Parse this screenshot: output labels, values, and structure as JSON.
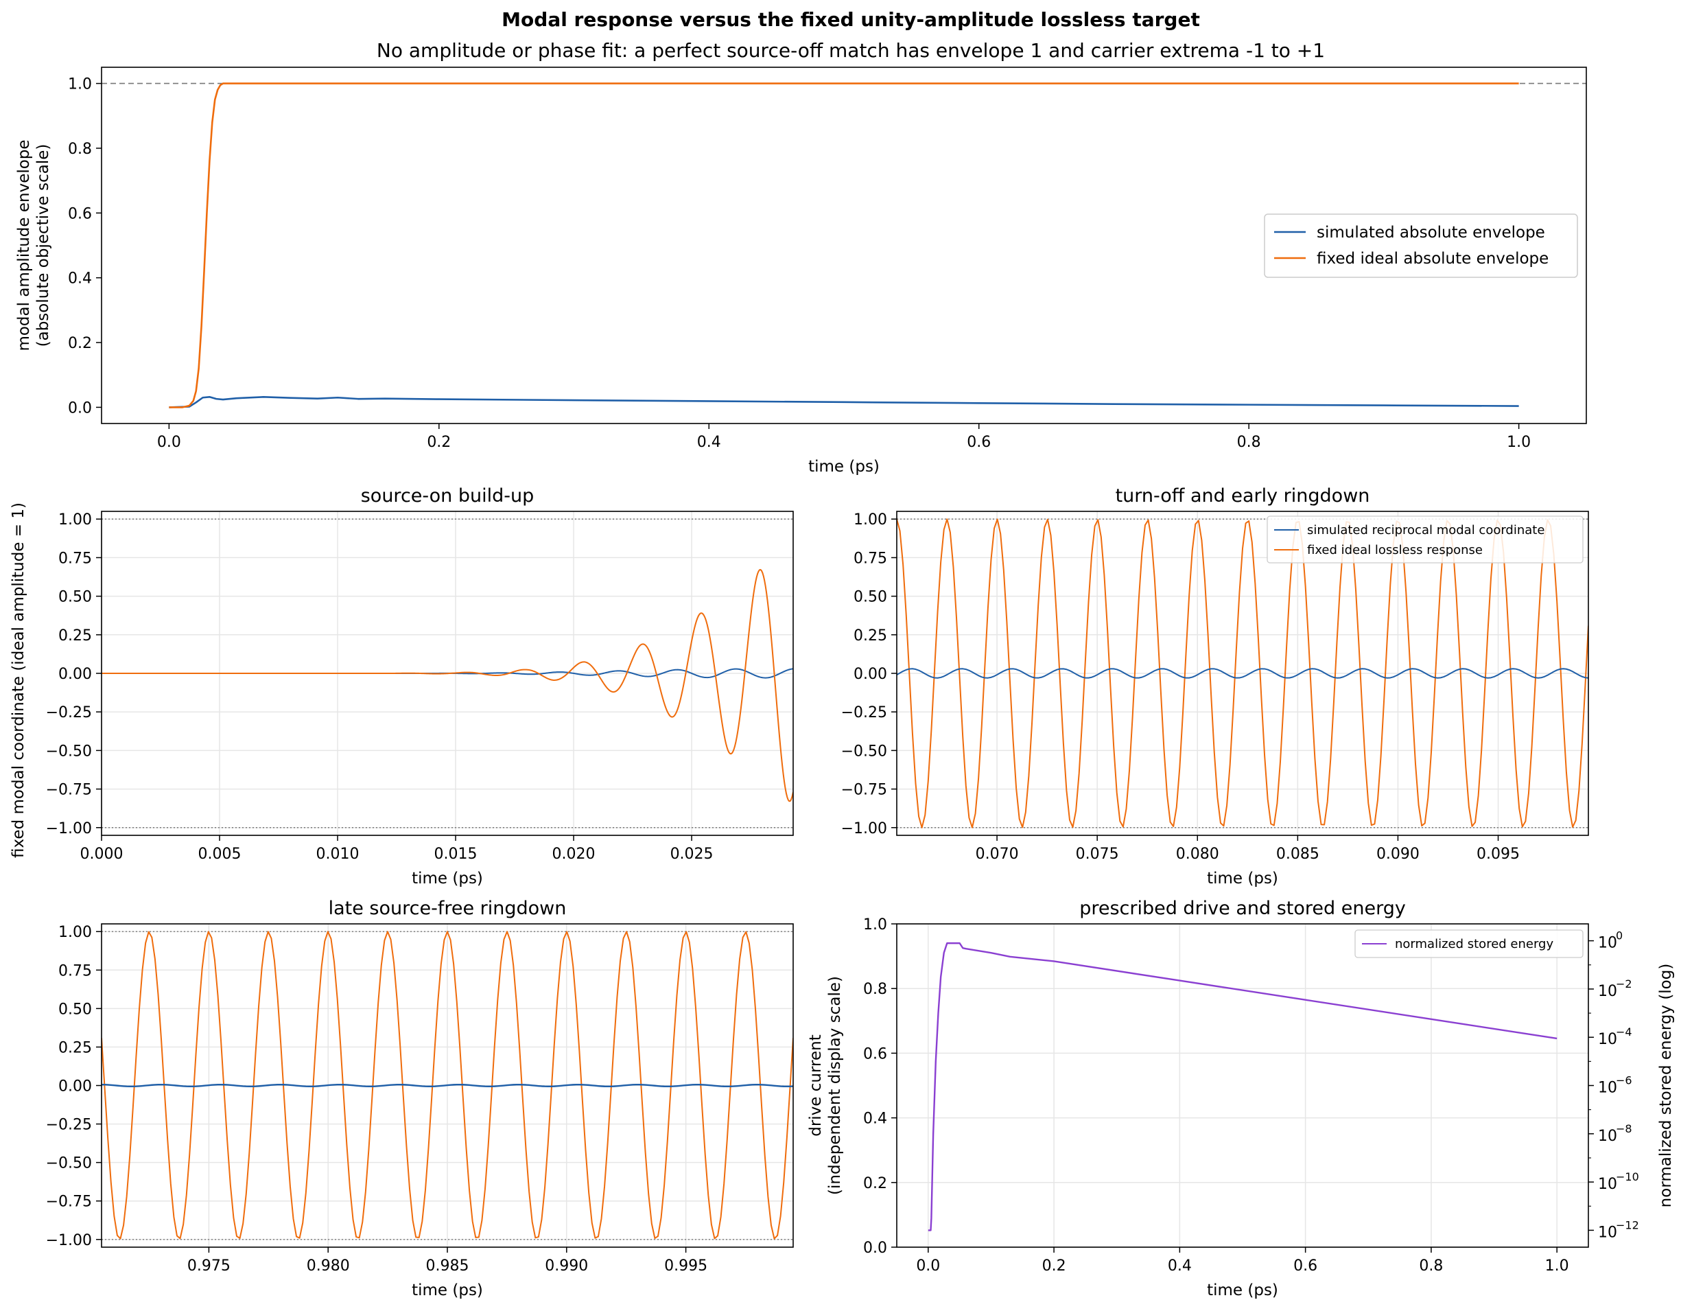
{
  "figure": {
    "title": "Modal response versus the fixed unity-amplitude lossless target",
    "subtitle": "No amplitude or phase fit: a perfect source-off match has envelope 1 and carrier extrema -1 to +1"
  },
  "colors": {
    "simulated": "#1f5fa8",
    "ideal": "#ef6c0c",
    "energy": "#8a3fd1",
    "grid": "#e6e6e6",
    "ref": "#777777"
  },
  "chart_data": [
    {
      "id": "envelope",
      "type": "line",
      "title": "",
      "xlabel": "time (ps)",
      "ylabel": [
        "modal amplitude envelope",
        "(absolute objective scale)"
      ],
      "xlim": [
        -0.05,
        1.05
      ],
      "ylim": [
        -0.05,
        1.05
      ],
      "xticks": [
        0.0,
        0.2,
        0.4,
        0.6,
        0.8,
        1.0
      ],
      "xtick_labels": [
        "0.0",
        "0.2",
        "0.4",
        "0.6",
        "0.8",
        "1.0"
      ],
      "yticks": [
        0.0,
        0.2,
        0.4,
        0.6,
        0.8,
        1.0
      ],
      "ytick_labels": [
        "0.0",
        "0.2",
        "0.4",
        "0.6",
        "0.8",
        "1.0"
      ],
      "grid": false,
      "reference_line": 1.0,
      "legend": "center-right",
      "series": [
        {
          "name": "simulated absolute envelope",
          "x": [
            0.0,
            0.015,
            0.02,
            0.025,
            0.03,
            0.035,
            0.04,
            0.05,
            0.07,
            0.09,
            0.11,
            0.125,
            0.14,
            0.16,
            0.2,
            0.3,
            0.4,
            0.5,
            0.6,
            0.7,
            0.8,
            0.9,
            1.0
          ],
          "y": [
            0.0,
            0.002,
            0.015,
            0.03,
            0.032,
            0.026,
            0.024,
            0.028,
            0.032,
            0.029,
            0.027,
            0.03,
            0.026,
            0.027,
            0.025,
            0.022,
            0.019,
            0.016,
            0.013,
            0.01,
            0.008,
            0.006,
            0.004
          ]
        },
        {
          "name": "fixed ideal absolute envelope",
          "x": [
            0.0,
            0.01,
            0.015,
            0.018,
            0.02,
            0.022,
            0.024,
            0.026,
            0.028,
            0.03,
            0.032,
            0.034,
            0.036,
            0.038,
            0.04,
            0.045,
            0.05,
            0.1,
            0.3,
            0.5,
            0.7,
            0.9,
            1.0
          ],
          "y": [
            0.0,
            0.0,
            0.005,
            0.02,
            0.05,
            0.12,
            0.25,
            0.42,
            0.6,
            0.76,
            0.88,
            0.95,
            0.98,
            0.995,
            1.0,
            1.0,
            1.0,
            1.0,
            1.0,
            1.0,
            1.0,
            1.0,
            1.0
          ]
        }
      ]
    },
    {
      "id": "buildup",
      "type": "line",
      "title": "source-on build-up",
      "xlabel": "time (ps)",
      "ylabel": "fixed modal coordinate (ideal amplitude = 1)",
      "xlim": [
        0.0,
        0.0293
      ],
      "ylim": [
        -1.05,
        1.05
      ],
      "xticks": [
        0.0,
        0.005,
        0.01,
        0.015,
        0.02,
        0.025
      ],
      "xtick_labels": [
        "0.000",
        "0.005",
        "0.010",
        "0.015",
        "0.020",
        "0.025"
      ],
      "yticks": [
        -1.0,
        -0.75,
        -0.5,
        -0.25,
        0.0,
        0.25,
        0.5,
        0.75,
        1.0
      ],
      "ytick_labels": [
        "−1.00",
        "−0.75",
        "−0.50",
        "−0.25",
        "0.00",
        "0.25",
        "0.50",
        "0.75",
        "1.00"
      ],
      "grid": true,
      "reference_lines": [
        -1.0,
        1.0
      ],
      "carrier_period_ps": 0.0025,
      "series": [
        {
          "name": "simulated reciprocal modal coordinate",
          "envelope_x": [
            0.0,
            0.014,
            0.017,
            0.02,
            0.023,
            0.026,
            0.0293
          ],
          "envelope_y": [
            0.0,
            0.0,
            0.003,
            0.01,
            0.02,
            0.028,
            0.03
          ],
          "phase": 0.5
        },
        {
          "name": "fixed ideal lossless response",
          "envelope_x": [
            0.0,
            0.012,
            0.015,
            0.0165,
            0.018,
            0.0195,
            0.021,
            0.0225,
            0.024,
            0.0255,
            0.027,
            0.0293
          ],
          "envelope_y": [
            0.0,
            0.0,
            0.004,
            0.012,
            0.025,
            0.05,
            0.09,
            0.16,
            0.27,
            0.4,
            0.56,
            0.85
          ],
          "phase": 0.1
        }
      ]
    },
    {
      "id": "turnoff",
      "type": "line",
      "title": "turn-off and early ringdown",
      "xlabel": "time (ps)",
      "ylabel": "",
      "xlim": [
        0.065,
        0.0995
      ],
      "ylim": [
        -1.05,
        1.05
      ],
      "xticks": [
        0.07,
        0.075,
        0.08,
        0.085,
        0.09,
        0.095
      ],
      "xtick_labels": [
        "0.070",
        "0.075",
        "0.080",
        "0.085",
        "0.090",
        "0.095"
      ],
      "yticks": [
        -1.0,
        -0.75,
        -0.5,
        -0.25,
        0.0,
        0.25,
        0.5,
        0.75,
        1.0
      ],
      "ytick_labels": [
        "−1.00",
        "−0.75",
        "−0.50",
        "−0.25",
        "0.00",
        "0.25",
        "0.50",
        "0.75",
        "1.00"
      ],
      "grid": true,
      "reference_lines": [
        -1.0,
        1.0
      ],
      "legend": "top-right",
      "carrier_period_ps": 0.0025,
      "series": [
        {
          "name": "simulated reciprocal modal coordinate",
          "amplitude": 0.03,
          "phase": 0.7
        },
        {
          "name": "fixed ideal lossless response",
          "amplitude": 1.0,
          "phase": 0.0
        }
      ]
    },
    {
      "id": "late",
      "type": "line",
      "title": "late source-free ringdown",
      "xlabel": "time (ps)",
      "ylabel": "",
      "xlim": [
        0.9705,
        0.9995
      ],
      "ylim": [
        -1.05,
        1.05
      ],
      "xticks": [
        0.975,
        0.98,
        0.985,
        0.99,
        0.995
      ],
      "xtick_labels": [
        "0.975",
        "0.980",
        "0.985",
        "0.990",
        "0.995"
      ],
      "yticks": [
        -1.0,
        -0.75,
        -0.5,
        -0.25,
        0.0,
        0.25,
        0.5,
        0.75,
        1.0
      ],
      "ytick_labels": [
        "−1.00",
        "−0.75",
        "−0.50",
        "−0.25",
        "0.00",
        "0.25",
        "0.50",
        "0.75",
        "1.00"
      ],
      "grid": true,
      "reference_lines": [
        -1.0,
        1.0
      ],
      "carrier_period_ps": 0.0025,
      "series": [
        {
          "name": "simulated reciprocal modal coordinate",
          "amplitude": 0.006,
          "phase": 0.8
        },
        {
          "name": "fixed ideal lossless response",
          "amplitude": 1.0,
          "phase": 0.0
        }
      ]
    },
    {
      "id": "energy",
      "type": "line",
      "title": "prescribed drive and stored energy",
      "xlabel": "time (ps)",
      "ylabel": [
        "drive current",
        "(independent display scale)"
      ],
      "ylabel_right": "normalized stored energy (log)",
      "xlim": [
        -0.05,
        1.05
      ],
      "ylim": [
        0.0,
        1.0
      ],
      "ylim_right_log10": [
        -12.7,
        0.7
      ],
      "xticks": [
        0.0,
        0.2,
        0.4,
        0.6,
        0.8,
        1.0
      ],
      "xtick_labels": [
        "0.0",
        "0.2",
        "0.4",
        "0.6",
        "0.8",
        "1.0"
      ],
      "yticks": [
        0.0,
        0.2,
        0.4,
        0.6,
        0.8,
        1.0
      ],
      "ytick_labels": [
        "0.0",
        "0.2",
        "0.4",
        "0.6",
        "0.8",
        "1.0"
      ],
      "yticks_right_log10": [
        -12,
        -10,
        -8,
        -6,
        -4,
        -2,
        0
      ],
      "ytick_right_labels": [
        "10",
        "10",
        "10",
        "10",
        "10",
        "10",
        "10"
      ],
      "ytick_right_exponents": [
        "−12",
        "−10",
        "−8",
        "−6",
        "−4",
        "−2",
        "0"
      ],
      "grid": true,
      "legend": "top-right",
      "series": [
        {
          "name": "normalized stored energy",
          "axis": "right",
          "x": [
            0.0,
            0.004,
            0.005,
            0.008,
            0.012,
            0.016,
            0.02,
            0.025,
            0.03,
            0.04,
            0.05,
            0.055,
            0.06,
            0.1,
            0.13,
            0.2,
            0.4,
            0.6,
            0.8,
            1.0
          ],
          "log10_y": [
            -12.0,
            -12.0,
            -11.5,
            -8.0,
            -5.0,
            -3.0,
            -1.5,
            -0.5,
            -0.1,
            -0.1,
            -0.1,
            -0.3,
            -0.33,
            -0.5,
            -0.66,
            -0.85,
            -1.65,
            -2.45,
            -3.25,
            -4.05
          ]
        }
      ]
    }
  ]
}
